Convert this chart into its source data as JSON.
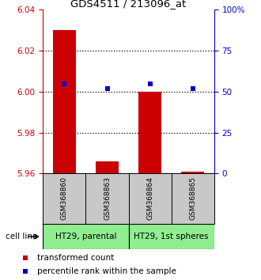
{
  "title": "GDS4511 / 213096_at",
  "samples": [
    "GSM368860",
    "GSM368863",
    "GSM368864",
    "GSM368865"
  ],
  "red_values": [
    6.03,
    5.966,
    6.0,
    5.961
  ],
  "blue_pct": [
    55,
    52,
    55,
    52
  ],
  "red_base": 5.96,
  "ylim_left": [
    5.96,
    6.04
  ],
  "ylim_right": [
    0,
    100
  ],
  "yticks_left": [
    5.96,
    5.98,
    6.0,
    6.02,
    6.04
  ],
  "yticks_right": [
    0,
    25,
    50,
    75,
    100
  ],
  "ytick_labels_right": [
    "0",
    "25",
    "50",
    "75",
    "100%"
  ],
  "cell_lines": [
    "HT29, parental",
    "HT29, 1st spheres"
  ],
  "cell_line_groups": [
    [
      0,
      1
    ],
    [
      2,
      3
    ]
  ],
  "cell_line_color": "#90EE90",
  "sample_box_color": "#C8C8C8",
  "bar_color": "#CC0000",
  "dot_color": "#0000CC",
  "legend_red_label": "transformed count",
  "legend_blue_label": "percentile rank within the sample",
  "left_axis_color": "#CC0000",
  "right_axis_color": "#0000CC",
  "bar_width": 0.55
}
